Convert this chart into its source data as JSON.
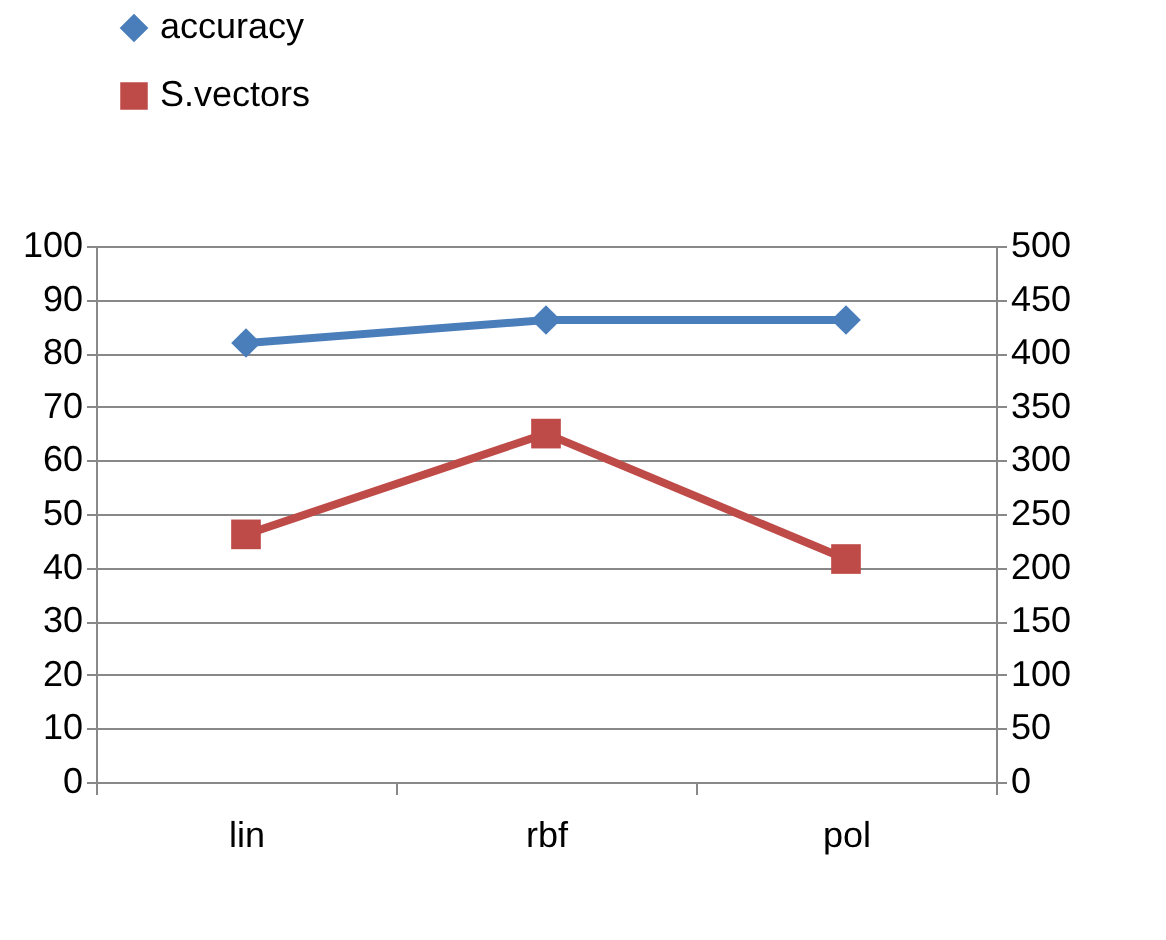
{
  "chart_data": {
    "type": "line",
    "categories": [
      "lin",
      "rbf",
      "pol"
    ],
    "series": [
      {
        "name": "accuracy",
        "color": "#4a7ebb",
        "marker": "diamond",
        "values": [
          81.9,
          86.2,
          86.2
        ]
      },
      {
        "name": "S.vectors",
        "color": "#be4b48",
        "marker": "square",
        "axis": "y2",
        "values": [
          231,
          325,
          208
        ]
      }
    ],
    "ylim": [
      0,
      100
    ],
    "yticks": [
      0,
      10,
      20,
      30,
      40,
      50,
      60,
      70,
      80,
      90,
      100
    ],
    "y2lim": [
      0,
      500
    ],
    "y2ticks": [
      0,
      50,
      100,
      150,
      200,
      250,
      300,
      350,
      400,
      450,
      500
    ],
    "grid": "y",
    "legend": "top left",
    "line_style": "solid"
  }
}
